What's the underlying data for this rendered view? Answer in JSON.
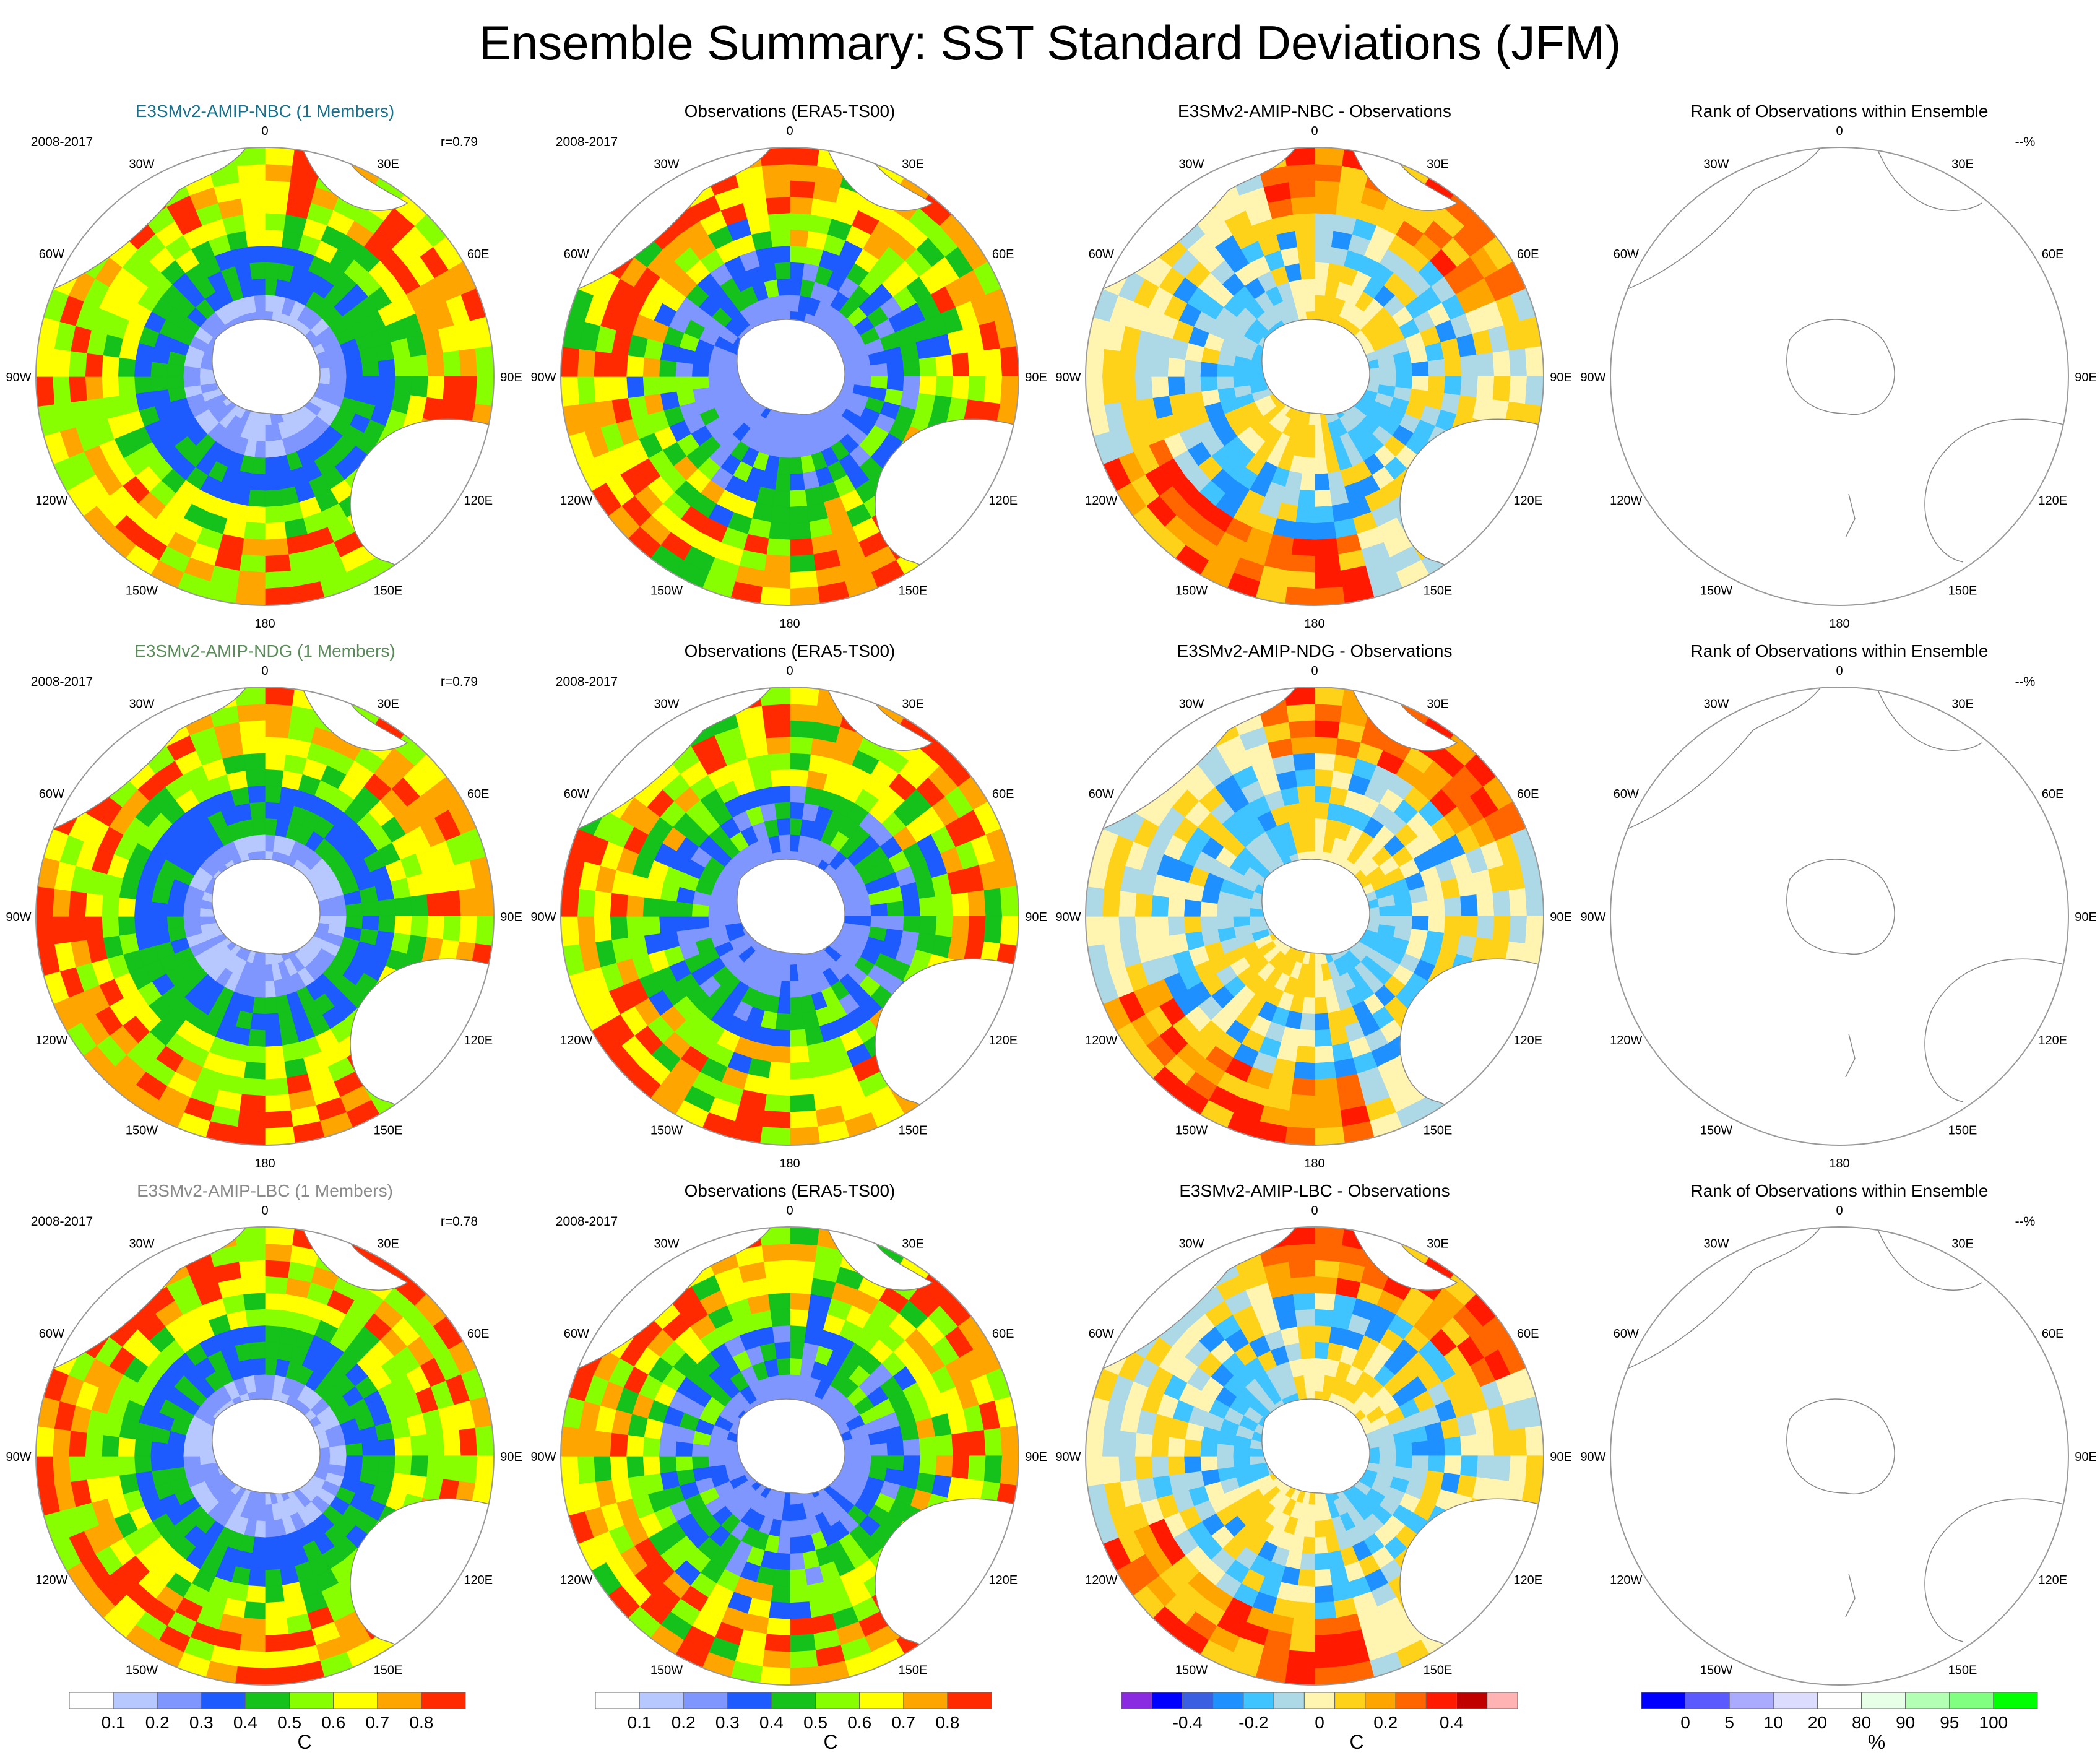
{
  "title": "Ensemble Summary: SST Standard Deviations (JFM)",
  "map_labels": {
    "lon_top": "0",
    "lon_30e": "30E",
    "lon_60e": "60E",
    "lon_90e": "90E",
    "lon_120e": "120E",
    "lon_150e": "150E",
    "lon_180": "180",
    "lon_150w": "150W",
    "lon_120w": "120W",
    "lon_90w": "90W",
    "lon_60w": "60W",
    "lon_30w": "30W"
  },
  "rows": [
    {
      "model": {
        "title": "E3SMv2-AMIP-NBC (1 Members)",
        "period": "2008-2017",
        "corr": "r=0.79",
        "title_color": "#1a6f8a"
      },
      "obs": {
        "title": "Observations (ERA5-TS00)",
        "period": "2008-2017"
      },
      "diff": {
        "title": "E3SMv2-AMIP-NBC - Observations"
      },
      "rank": {
        "title": "Rank of Observations within Ensemble",
        "corner": "--%"
      }
    },
    {
      "model": {
        "title": "E3SMv2-AMIP-NDG (1 Members)",
        "period": "2008-2017",
        "corr": "r=0.79",
        "title_color": "#5b8b5b"
      },
      "obs": {
        "title": "Observations (ERA5-TS00)",
        "period": "2008-2017"
      },
      "diff": {
        "title": "E3SMv2-AMIP-NDG - Observations"
      },
      "rank": {
        "title": "Rank of Observations within Ensemble",
        "corner": "--%"
      }
    },
    {
      "model": {
        "title": "E3SMv2-AMIP-LBC (1 Members)",
        "period": "2008-2017",
        "corr": "r=0.78",
        "title_color": "#8a8a8a"
      },
      "obs": {
        "title": "Observations (ERA5-TS00)",
        "period": "2008-2017"
      },
      "diff": {
        "title": "E3SMv2-AMIP-LBC - Observations"
      },
      "rank": {
        "title": "Rank of Observations within Ensemble",
        "corner": "--%"
      }
    }
  ],
  "colorbars": {
    "sd": {
      "unit": "C",
      "colors": [
        "#ffffff",
        "#b7c7ff",
        "#7f96ff",
        "#1e5bff",
        "#15c11b",
        "#88ff00",
        "#ffff00",
        "#ffa500",
        "#ff2a00"
      ],
      "labels": [
        "0.1",
        "0.2",
        "0.3",
        "0.4",
        "0.5",
        "0.6",
        "0.7",
        "0.8"
      ]
    },
    "diff": {
      "unit": "C",
      "colors": [
        "#8a2be2",
        "#0000ff",
        "#3a5fe0",
        "#1e90ff",
        "#40c4ff",
        "#add8e6",
        "#fff4b0",
        "#ffd21a",
        "#ffa500",
        "#ff6600",
        "#ff1a00",
        "#c00000",
        "#ffb3b3"
      ],
      "labels": [
        "-0.4",
        "-0.2",
        "0",
        "0.2",
        "0.4"
      ]
    },
    "rank": {
      "unit": "%",
      "colors": [
        "#0000ff",
        "#5a5aff",
        "#aaaaff",
        "#dcdcff",
        "#ffffff",
        "#e6ffe6",
        "#b3ffb3",
        "#80ff80",
        "#00ff00"
      ],
      "labels": [
        "0",
        "5",
        "10",
        "20",
        "80",
        "90",
        "95",
        "100"
      ]
    }
  }
}
